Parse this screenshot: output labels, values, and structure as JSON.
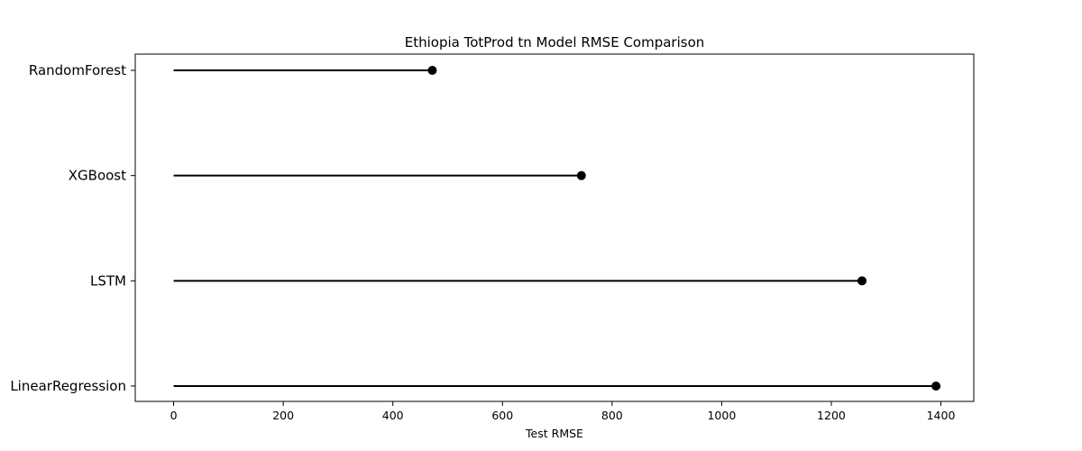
{
  "chart_data": {
    "type": "lollipop",
    "title": "Ethiopia TotProd tn Model RMSE Comparison",
    "xlabel": "Test RMSE",
    "ylabel": "",
    "categories": [
      "RandomForest",
      "XGBoost",
      "LSTM",
      "LinearRegression"
    ],
    "values": [
      472,
      744,
      1256,
      1391
    ],
    "xlim": [
      -70,
      1460
    ],
    "xticks": [
      0,
      200,
      400,
      600,
      800,
      1000,
      1200,
      1400
    ],
    "grid": false,
    "color": "#000000"
  }
}
